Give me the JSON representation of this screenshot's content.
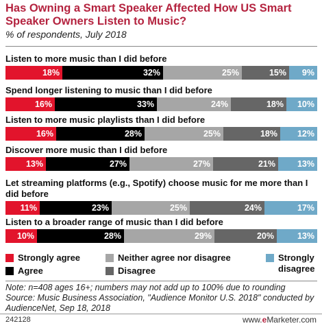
{
  "chart_data": {
    "type": "bar",
    "orientation": "horizontal-stacked-100",
    "title": "Has Owning a Smart Speaker Affected How US Smart Speaker Owners Listen to Music?",
    "subtitle": "% of respondents, July 2018",
    "value_suffix": "%",
    "categories": [
      "Listen to more music than I did before",
      "Spend longer listening to music than I did before",
      "Listen to more music playlists than I did before",
      "Discover more music than I did before",
      "Let streaming platforms (e.g., Spotify) choose music for me more than I did before",
      "Listen to a broader range of music than I did before"
    ],
    "series": [
      {
        "name": "Strongly agree",
        "color": "#e2142c",
        "values": [
          18,
          16,
          16,
          13,
          11,
          10
        ]
      },
      {
        "name": "Agree",
        "color": "#000000",
        "values": [
          32,
          33,
          28,
          27,
          23,
          28
        ]
      },
      {
        "name": "Neither agree nor disagree",
        "color": "#a6a6a6",
        "values": [
          25,
          24,
          25,
          27,
          25,
          29
        ]
      },
      {
        "name": "Disagree",
        "color": "#666666",
        "values": [
          15,
          18,
          18,
          21,
          24,
          20
        ]
      },
      {
        "name": "Strongly disagree",
        "color": "#6fa9c8",
        "values": [
          9,
          10,
          12,
          13,
          17,
          13
        ]
      }
    ],
    "legend_position": "bottom"
  },
  "legend": {
    "strongly_agree": "Strongly agree",
    "agree": "Agree",
    "neither": "Neither agree nor disagree",
    "disagree": "Disagree",
    "strongly_disagree": "Strongly disagree"
  },
  "note": "Note: n=408 ages 16+; numbers may not add up to 100% due to rounding",
  "source": "Source: Music Business Association, \"Audience Monitor U.S. 2018\" conducted by AudienceNet, Sep 18, 2018",
  "footer": {
    "chart_id": "242128",
    "brand_prefix": "www.",
    "brand_highlight": "e",
    "brand_suffix": "Marketer.com"
  }
}
